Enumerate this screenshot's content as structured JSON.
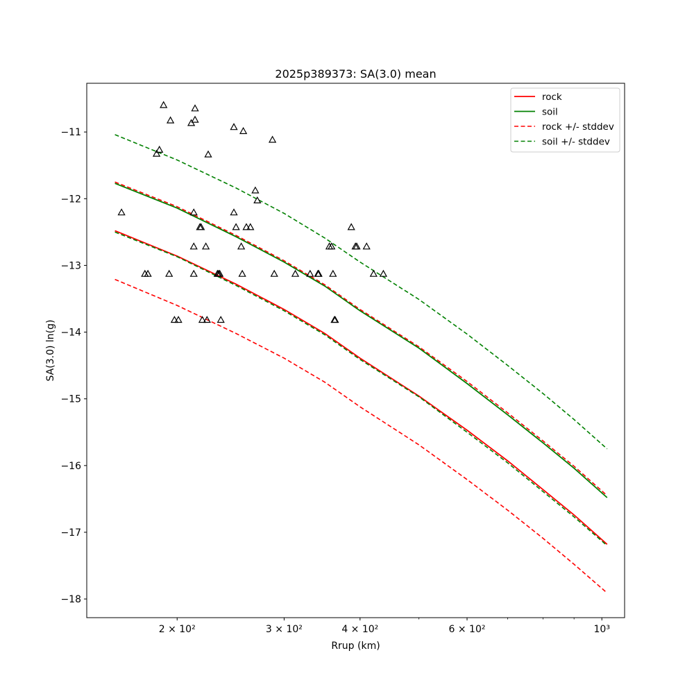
{
  "chart_data": {
    "type": "scatter",
    "title": "2025p389373: SA(3.0) mean",
    "xlabel": "Rrup (km)",
    "ylabel": "SA(3.0) ln(g)",
    "xscale": "log",
    "xlim": [
      142,
      1090
    ],
    "ylim": [
      -18.28,
      -10.27
    ],
    "xticks": [
      {
        "value": 200,
        "label": "2 × 10²"
      },
      {
        "value": 300,
        "label": "3 × 10²"
      },
      {
        "value": 400,
        "label": "4 × 10²"
      },
      {
        "value": 600,
        "label": "6 × 10²"
      },
      {
        "value": 1000,
        "label": "10³"
      }
    ],
    "x_minor_ticks": [
      500,
      700,
      800,
      900
    ],
    "yticks": [
      -18,
      -17,
      -16,
      -15,
      -14,
      -13,
      -12,
      -11
    ],
    "legend_position": "top-right",
    "grid": false,
    "colors": {
      "rock": "#ff0000",
      "soil": "#008000",
      "observed": "#000000"
    },
    "curve_x": [
      158,
      200,
      250,
      300,
      350,
      400,
      500,
      600,
      700,
      800,
      900,
      1020
    ],
    "series": [
      {
        "name": "rock",
        "style": "solid",
        "color": "#ff0000",
        "y": [
          -12.48,
          -12.86,
          -13.28,
          -13.66,
          -14.02,
          -14.39,
          -14.96,
          -15.47,
          -15.93,
          -16.36,
          -16.74,
          -17.18
        ]
      },
      {
        "name": "soil",
        "style": "solid",
        "color": "#008000",
        "y": [
          -11.77,
          -12.14,
          -12.57,
          -12.95,
          -13.31,
          -13.68,
          -14.24,
          -14.77,
          -15.24,
          -15.66,
          -16.04,
          -16.48
        ]
      },
      {
        "name": "rock +/- stddev",
        "style": "dashed",
        "color": "#ff0000",
        "legend": true,
        "y": [
          -11.75,
          -12.12,
          -12.55,
          -12.93,
          -13.29,
          -13.66,
          -14.22,
          -14.74,
          -15.21,
          -15.63,
          -16.01,
          -16.45
        ]
      },
      {
        "name": "",
        "style": "dashed",
        "color": "#ff0000",
        "legend": false,
        "y": [
          -13.21,
          -13.6,
          -14.02,
          -14.39,
          -14.75,
          -15.12,
          -15.69,
          -16.21,
          -16.67,
          -17.09,
          -17.48,
          -17.91
        ]
      },
      {
        "name": "soil +/- stddev",
        "style": "dashed",
        "color": "#008000",
        "legend": true,
        "y": [
          -11.04,
          -11.42,
          -11.84,
          -12.22,
          -12.59,
          -12.95,
          -13.51,
          -14.03,
          -14.5,
          -14.92,
          -15.31,
          -15.75
        ]
      },
      {
        "name": "",
        "style": "dashed",
        "color": "#008000",
        "legend": false,
        "y": [
          -12.5,
          -12.87,
          -13.3,
          -13.68,
          -14.04,
          -14.41,
          -14.97,
          -15.5,
          -15.96,
          -16.39,
          -16.77,
          -17.2
        ]
      }
    ],
    "observations": [
      {
        "x": 162,
        "y": -12.21
      },
      {
        "x": 177,
        "y": -13.13
      },
      {
        "x": 179,
        "y": -13.13
      },
      {
        "x": 185,
        "y": -11.33
      },
      {
        "x": 187,
        "y": -11.27
      },
      {
        "x": 190,
        "y": -10.6
      },
      {
        "x": 194,
        "y": -13.13
      },
      {
        "x": 195,
        "y": -10.83
      },
      {
        "x": 198,
        "y": -13.82
      },
      {
        "x": 201,
        "y": -13.82
      },
      {
        "x": 211,
        "y": -10.87
      },
      {
        "x": 213,
        "y": -12.72
      },
      {
        "x": 213,
        "y": -13.13
      },
      {
        "x": 213,
        "y": -12.21
      },
      {
        "x": 214,
        "y": -10.82
      },
      {
        "x": 214,
        "y": -10.65
      },
      {
        "x": 218,
        "y": -12.43
      },
      {
        "x": 219,
        "y": -12.43
      },
      {
        "x": 220,
        "y": -13.82
      },
      {
        "x": 223,
        "y": -12.72
      },
      {
        "x": 224,
        "y": -13.82
      },
      {
        "x": 225,
        "y": -11.34
      },
      {
        "x": 233,
        "y": -13.13
      },
      {
        "x": 234,
        "y": -13.13
      },
      {
        "x": 235,
        "y": -13.13
      },
      {
        "x": 236,
        "y": -13.82
      },
      {
        "x": 248,
        "y": -10.93
      },
      {
        "x": 248,
        "y": -12.21
      },
      {
        "x": 250,
        "y": -12.43
      },
      {
        "x": 255,
        "y": -12.72
      },
      {
        "x": 256,
        "y": -13.13
      },
      {
        "x": 257,
        "y": -10.99
      },
      {
        "x": 260,
        "y": -12.43
      },
      {
        "x": 264,
        "y": -12.43
      },
      {
        "x": 269,
        "y": -11.88
      },
      {
        "x": 271,
        "y": -12.03
      },
      {
        "x": 287,
        "y": -11.12
      },
      {
        "x": 289,
        "y": -13.13
      },
      {
        "x": 313,
        "y": -13.13
      },
      {
        "x": 331,
        "y": -13.13
      },
      {
        "x": 341,
        "y": -13.13
      },
      {
        "x": 342,
        "y": -13.13
      },
      {
        "x": 356,
        "y": -12.72
      },
      {
        "x": 359,
        "y": -12.72
      },
      {
        "x": 361,
        "y": -13.13
      },
      {
        "x": 363,
        "y": -13.82
      },
      {
        "x": 364,
        "y": -13.82
      },
      {
        "x": 387,
        "y": -12.43
      },
      {
        "x": 393,
        "y": -12.72
      },
      {
        "x": 395,
        "y": -12.72
      },
      {
        "x": 410,
        "y": -12.72
      },
      {
        "x": 421,
        "y": -13.13
      },
      {
        "x": 437,
        "y": -13.13
      }
    ]
  }
}
